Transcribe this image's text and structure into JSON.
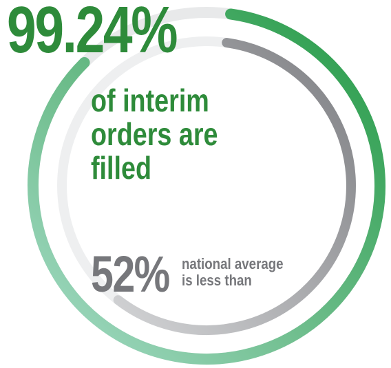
{
  "headline": {
    "value": "99.24%",
    "value_fraction": 0.9924,
    "caption_lines": [
      "of interim",
      "orders are",
      "filled"
    ]
  },
  "comparison": {
    "value": "52%",
    "value_fraction": 0.52,
    "text_lines": [
      "national average",
      "is less than"
    ]
  },
  "colors": {
    "primary_green": "#2e8b3a",
    "light_green": "#9dd8c3",
    "gray_text": "#76777b",
    "gray_arc": "#898a8e",
    "track": "#e6e7e8"
  }
}
